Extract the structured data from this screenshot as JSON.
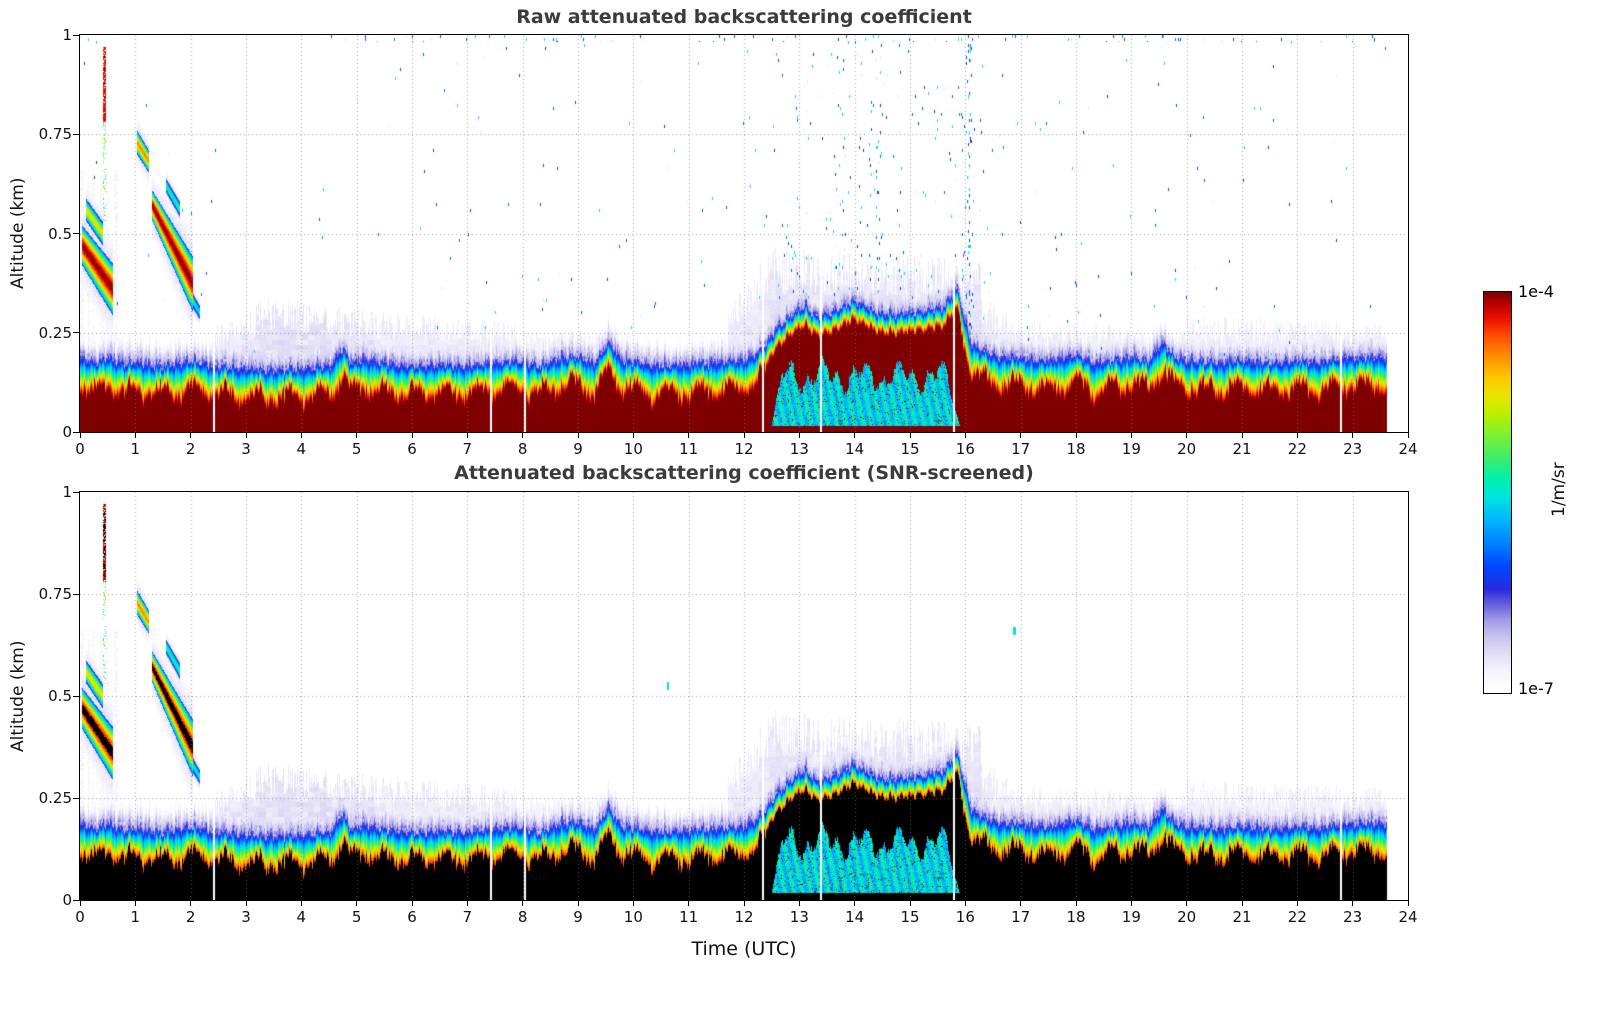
{
  "chart_data": {
    "type": "heatmap",
    "panels": [
      {
        "title": "Raw attenuated backscattering coefficient",
        "screened": false,
        "noise_speckle": true
      },
      {
        "title": "Attenuated backscattering coefficient (SNR-screened)",
        "screened": true,
        "noise_speckle": false
      }
    ],
    "x": {
      "label": "Time (UTC)",
      "lim": [
        0,
        24
      ],
      "ticks": [
        0,
        1,
        2,
        3,
        4,
        5,
        6,
        7,
        8,
        9,
        10,
        11,
        12,
        13,
        14,
        15,
        16,
        17,
        18,
        19,
        20,
        21,
        22,
        23,
        24
      ]
    },
    "y": {
      "label": "Altitude (km)",
      "lim": [
        0,
        1
      ],
      "ticks": [
        0,
        0.25,
        0.5,
        0.75,
        1
      ]
    },
    "grid": true,
    "colorbar": {
      "min_label": "1e-7",
      "max_label": "1e-4",
      "units": "1/m/sr",
      "scale": "log"
    },
    "colormap_stops": [
      [
        0.0,
        "#ffffff"
      ],
      [
        0.05,
        "#f2f0fb"
      ],
      [
        0.09,
        "#e0dcf6"
      ],
      [
        0.13,
        "#c9c4ef"
      ],
      [
        0.17,
        "#a49ee6"
      ],
      [
        0.21,
        "#6b63dd"
      ],
      [
        0.25,
        "#2a2ae0"
      ],
      [
        0.31,
        "#0048ff"
      ],
      [
        0.37,
        "#0085ff"
      ],
      [
        0.43,
        "#00bbff"
      ],
      [
        0.48,
        "#00e2e0"
      ],
      [
        0.53,
        "#00efae"
      ],
      [
        0.58,
        "#3cee6e"
      ],
      [
        0.64,
        "#7df132"
      ],
      [
        0.69,
        "#b8f000"
      ],
      [
        0.74,
        "#eae500"
      ],
      [
        0.79,
        "#ffc400"
      ],
      [
        0.84,
        "#ff8d00"
      ],
      [
        0.89,
        "#ff4e00"
      ],
      [
        0.93,
        "#ee1500"
      ],
      [
        0.97,
        "#bb0000"
      ],
      [
        1.0,
        "#7f0000"
      ]
    ],
    "field_model": {
      "data_end": 23.62,
      "sat_threshold": 0.935,
      "screened_saturation_color": "#000000",
      "mixed_layer_height": [
        [
          0,
          0.185
        ],
        [
          0.3,
          0.175
        ],
        [
          0.5,
          0.19
        ],
        [
          0.8,
          0.17
        ],
        [
          1.0,
          0.175
        ],
        [
          1.5,
          0.165
        ],
        [
          2.0,
          0.18
        ],
        [
          2.5,
          0.165
        ],
        [
          3.0,
          0.16
        ],
        [
          3.5,
          0.155
        ],
        [
          4.0,
          0.16
        ],
        [
          4.5,
          0.165
        ],
        [
          4.75,
          0.21
        ],
        [
          4.9,
          0.17
        ],
        [
          5.2,
          0.185
        ],
        [
          5.6,
          0.17
        ],
        [
          6.0,
          0.165
        ],
        [
          6.5,
          0.17
        ],
        [
          7.0,
          0.165
        ],
        [
          7.5,
          0.175
        ],
        [
          8.0,
          0.18
        ],
        [
          8.3,
          0.165
        ],
        [
          8.6,
          0.185
        ],
        [
          9.0,
          0.19
        ],
        [
          9.3,
          0.175
        ],
        [
          9.55,
          0.225
        ],
        [
          9.75,
          0.185
        ],
        [
          10.0,
          0.175
        ],
        [
          10.5,
          0.165
        ],
        [
          11.0,
          0.17
        ],
        [
          11.5,
          0.175
        ],
        [
          12.0,
          0.18
        ],
        [
          12.3,
          0.205
        ],
        [
          12.6,
          0.26
        ],
        [
          12.9,
          0.3
        ],
        [
          13.1,
          0.315
        ],
        [
          13.3,
          0.29
        ],
        [
          13.6,
          0.3
        ],
        [
          13.95,
          0.33
        ],
        [
          14.15,
          0.32
        ],
        [
          14.4,
          0.3
        ],
        [
          14.7,
          0.295
        ],
        [
          15.0,
          0.3
        ],
        [
          15.3,
          0.305
        ],
        [
          15.6,
          0.315
        ],
        [
          15.85,
          0.36
        ],
        [
          15.95,
          0.3
        ],
        [
          16.1,
          0.22
        ],
        [
          16.35,
          0.2
        ],
        [
          16.6,
          0.19
        ],
        [
          17.0,
          0.185
        ],
        [
          17.5,
          0.18
        ],
        [
          18.0,
          0.195
        ],
        [
          18.3,
          0.175
        ],
        [
          18.7,
          0.18
        ],
        [
          19.0,
          0.19
        ],
        [
          19.3,
          0.18
        ],
        [
          19.55,
          0.225
        ],
        [
          19.8,
          0.185
        ],
        [
          20.0,
          0.18
        ],
        [
          20.5,
          0.175
        ],
        [
          21.0,
          0.18
        ],
        [
          21.5,
          0.175
        ],
        [
          22.0,
          0.18
        ],
        [
          22.5,
          0.175
        ],
        [
          22.8,
          0.19
        ],
        [
          23.1,
          0.185
        ],
        [
          23.62,
          0.19
        ]
      ],
      "fog_window": [
        12.45,
        15.92
      ],
      "clouds": [
        [
          0.03,
          0.58,
          0.47,
          0.36,
          0.05,
          0.065,
          1.0
        ],
        [
          0.1,
          0.4,
          0.56,
          0.5,
          0.028,
          0.03,
          0.75
        ],
        [
          1.02,
          1.24,
          0.73,
          0.68,
          0.03,
          0.028,
          0.85
        ],
        [
          1.3,
          2.04,
          0.57,
          0.37,
          0.038,
          0.07,
          1.0
        ],
        [
          1.55,
          1.8,
          0.62,
          0.56,
          0.018,
          0.02,
          0.55
        ],
        [
          1.97,
          2.16,
          0.345,
          0.3,
          0.02,
          0.018,
          0.5
        ]
      ],
      "streak": {
        "t0": 0.405,
        "t1": 0.455,
        "z0": 0.53,
        "z1": 0.97
      },
      "residual_layers": [
        [
          2.35,
          3.2,
          0.23,
          0.28,
          0.85
        ],
        [
          3.2,
          5.3,
          0.3,
          0.27,
          0.95
        ],
        [
          5.3,
          7.9,
          0.27,
          0.24,
          0.6
        ],
        [
          8.0,
          9.7,
          0.23,
          0.22,
          0.4
        ],
        [
          11.7,
          12.45,
          0.28,
          0.4,
          0.7
        ],
        [
          12.45,
          16.3,
          0.41,
          0.38,
          0.8
        ],
        [
          16.3,
          17.0,
          0.3,
          0.25,
          0.6
        ],
        [
          17.0,
          19.7,
          0.25,
          0.23,
          0.45
        ],
        [
          19.9,
          23.6,
          0.26,
          0.24,
          0.5
        ]
      ],
      "gaps": [
        2.42,
        7.42,
        8.04,
        12.34,
        13.38,
        15.79,
        22.78
      ],
      "noise_windows": [
        [
          0,
          2.5,
          0.55
        ],
        [
          2.5,
          6,
          0.22
        ],
        [
          6,
          9,
          0.85
        ],
        [
          9,
          12,
          0.6
        ],
        [
          12,
          12.5,
          1.5
        ],
        [
          12.5,
          16.5,
          3.2
        ],
        [
          16.5,
          18.5,
          1.6
        ],
        [
          18.5,
          20.5,
          0.95
        ],
        [
          20.5,
          22,
          0.5
        ],
        [
          22,
          23.6,
          0.45
        ]
      ],
      "screened_specks": [
        [
          10.62,
          0.525
        ],
        [
          16.88,
          0.66
        ]
      ]
    }
  }
}
